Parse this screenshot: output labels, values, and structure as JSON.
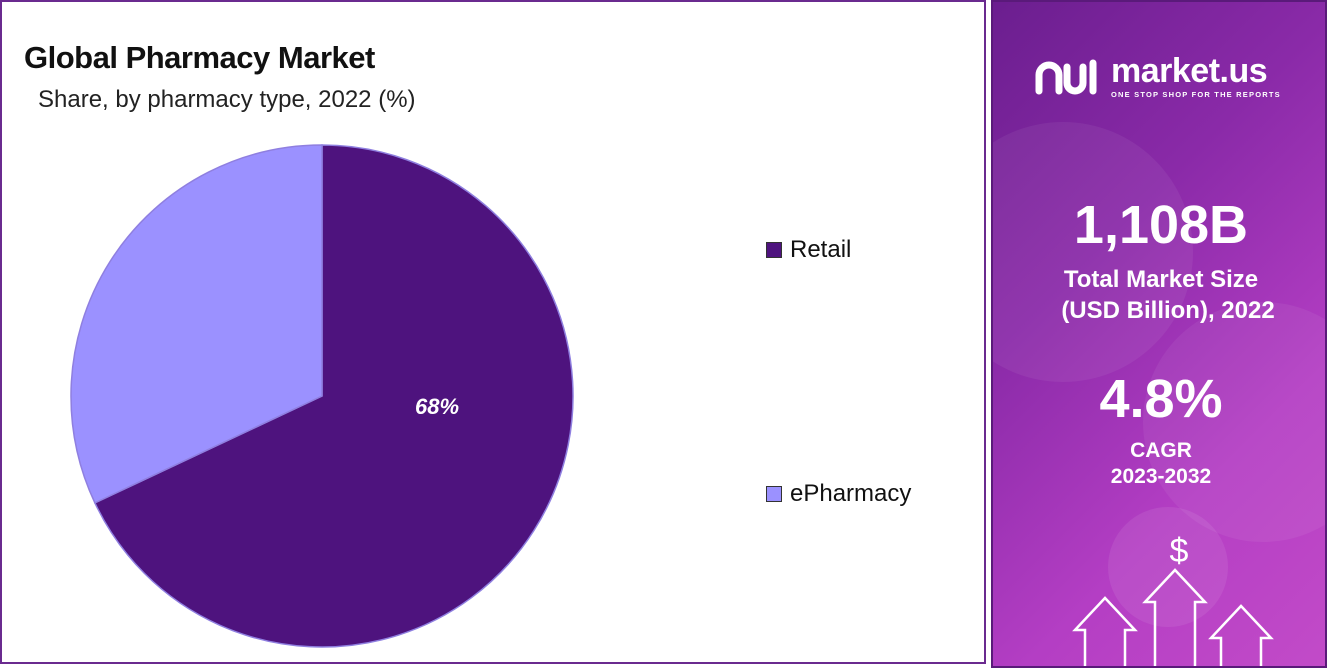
{
  "chart_data": {
    "type": "pie",
    "title": "Global Pharmacy Market",
    "subtitle": "Share, by pharmacy type, 2022 (%)",
    "categories": [
      "Retail",
      "ePharmacy"
    ],
    "values": [
      68,
      32
    ],
    "labels": [
      "68%",
      ""
    ],
    "colors": [
      "#4e137e",
      "#9b91ff"
    ],
    "legend_position": "right"
  },
  "brand": {
    "name": "market.us",
    "tagline": "ONE STOP SHOP FOR THE REPORTS"
  },
  "stats": {
    "market_size_value": "1,108B",
    "market_size_label_line1": "Total Market Size",
    "market_size_label_line2": "(USD Billion), 2022",
    "cagr_value": "4.8%",
    "cagr_label_line1": "CAGR",
    "cagr_label_line2": "2023-2032"
  },
  "decor": {
    "dollar_symbol": "$"
  }
}
